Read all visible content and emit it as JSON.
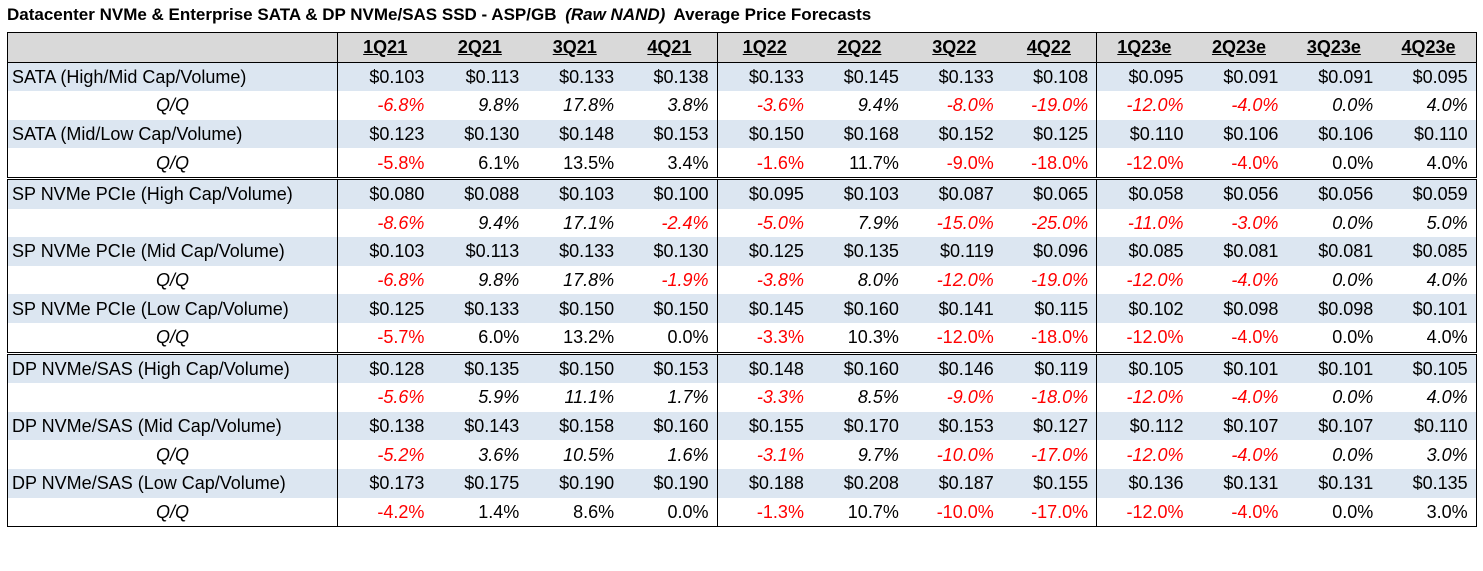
{
  "title": {
    "prefix": "Datacenter NVMe & Enterprise SATA & DP NVMe/SAS SSD - ASP/GB",
    "italic": "(Raw NAND)",
    "suffix": "Average Price Forecasts"
  },
  "chart_data": {
    "type": "table",
    "columns": [
      "1Q21",
      "2Q21",
      "3Q21",
      "4Q21",
      "1Q22",
      "2Q22",
      "3Q22",
      "4Q22",
      "1Q23e",
      "2Q23e",
      "3Q23e",
      "4Q23e"
    ],
    "rows": [
      {
        "label": "SATA (High/Mid Cap/Volume)",
        "kind": "price",
        "group_start": false,
        "values": [
          "$0.103",
          "$0.113",
          "$0.133",
          "$0.138",
          "$0.133",
          "$0.145",
          "$0.133",
          "$0.108",
          "$0.095",
          "$0.091",
          "$0.091",
          "$0.095"
        ]
      },
      {
        "label": "Q/Q",
        "kind": "qq",
        "italic": true,
        "values": [
          "-6.8%",
          "9.8%",
          "17.8%",
          "3.8%",
          "-3.6%",
          "9.4%",
          "-8.0%",
          "-19.0%",
          "-12.0%",
          "-4.0%",
          "0.0%",
          "4.0%"
        ]
      },
      {
        "label": "SATA (Mid/Low Cap/Volume)",
        "kind": "price",
        "values": [
          "$0.123",
          "$0.130",
          "$0.148",
          "$0.153",
          "$0.150",
          "$0.168",
          "$0.152",
          "$0.125",
          "$0.110",
          "$0.106",
          "$0.106",
          "$0.110"
        ]
      },
      {
        "label": "Q/Q",
        "kind": "qq",
        "italic": false,
        "values": [
          "-5.8%",
          "6.1%",
          "13.5%",
          "3.4%",
          "-1.6%",
          "11.7%",
          "-9.0%",
          "-18.0%",
          "-12.0%",
          "-4.0%",
          "0.0%",
          "4.0%"
        ]
      },
      {
        "label": "SP NVMe PCIe (High Cap/Volume)",
        "kind": "price",
        "group_start": true,
        "values": [
          "$0.080",
          "$0.088",
          "$0.103",
          "$0.100",
          "$0.095",
          "$0.103",
          "$0.087",
          "$0.065",
          "$0.058",
          "$0.056",
          "$0.056",
          "$0.059"
        ]
      },
      {
        "label": "",
        "kind": "qq",
        "italic": true,
        "values": [
          "-8.6%",
          "9.4%",
          "17.1%",
          "-2.4%",
          "-5.0%",
          "7.9%",
          "-15.0%",
          "-25.0%",
          "-11.0%",
          "-3.0%",
          "0.0%",
          "5.0%"
        ]
      },
      {
        "label": "SP NVMe PCIe (Mid Cap/Volume)",
        "kind": "price",
        "values": [
          "$0.103",
          "$0.113",
          "$0.133",
          "$0.130",
          "$0.125",
          "$0.135",
          "$0.119",
          "$0.096",
          "$0.085",
          "$0.081",
          "$0.081",
          "$0.085"
        ]
      },
      {
        "label": "Q/Q",
        "kind": "qq",
        "italic": true,
        "values": [
          "-6.8%",
          "9.8%",
          "17.8%",
          "-1.9%",
          "-3.8%",
          "8.0%",
          "-12.0%",
          "-19.0%",
          "-12.0%",
          "-4.0%",
          "0.0%",
          "4.0%"
        ]
      },
      {
        "label": "SP NVMe PCIe (Low Cap/Volume)",
        "kind": "price",
        "values": [
          "$0.125",
          "$0.133",
          "$0.150",
          "$0.150",
          "$0.145",
          "$0.160",
          "$0.141",
          "$0.115",
          "$0.102",
          "$0.098",
          "$0.098",
          "$0.101"
        ]
      },
      {
        "label": "Q/Q",
        "kind": "qq",
        "italic": false,
        "values": [
          "-5.7%",
          "6.0%",
          "13.2%",
          "0.0%",
          "-3.3%",
          "10.3%",
          "-12.0%",
          "-18.0%",
          "-12.0%",
          "-4.0%",
          "0.0%",
          "4.0%"
        ]
      },
      {
        "label": "DP NVMe/SAS (High Cap/Volume)",
        "kind": "price",
        "group_start": true,
        "values": [
          "$0.128",
          "$0.135",
          "$0.150",
          "$0.153",
          "$0.148",
          "$0.160",
          "$0.146",
          "$0.119",
          "$0.105",
          "$0.101",
          "$0.101",
          "$0.105"
        ]
      },
      {
        "label": "",
        "kind": "qq",
        "italic": true,
        "values": [
          "-5.6%",
          "5.9%",
          "11.1%",
          "1.7%",
          "-3.3%",
          "8.5%",
          "-9.0%",
          "-18.0%",
          "-12.0%",
          "-4.0%",
          "0.0%",
          "4.0%"
        ]
      },
      {
        "label": "DP NVMe/SAS (Mid Cap/Volume)",
        "kind": "price",
        "values": [
          "$0.138",
          "$0.143",
          "$0.158",
          "$0.160",
          "$0.155",
          "$0.170",
          "$0.153",
          "$0.127",
          "$0.112",
          "$0.107",
          "$0.107",
          "$0.110"
        ]
      },
      {
        "label": "Q/Q",
        "kind": "qq",
        "italic": true,
        "values": [
          "-5.2%",
          "3.6%",
          "10.5%",
          "1.6%",
          "-3.1%",
          "9.7%",
          "-10.0%",
          "-17.0%",
          "-12.0%",
          "-4.0%",
          "0.0%",
          "3.0%"
        ]
      },
      {
        "label": "DP NVMe/SAS (Low Cap/Volume)",
        "kind": "price",
        "values": [
          "$0.173",
          "$0.175",
          "$0.190",
          "$0.190",
          "$0.188",
          "$0.208",
          "$0.187",
          "$0.155",
          "$0.136",
          "$0.131",
          "$0.131",
          "$0.135"
        ]
      },
      {
        "label": "Q/Q",
        "kind": "qq",
        "italic": false,
        "values": [
          "-4.2%",
          "1.4%",
          "8.6%",
          "0.0%",
          "-1.3%",
          "10.7%",
          "-10.0%",
          "-17.0%",
          "-12.0%",
          "-4.0%",
          "0.0%",
          "3.0%"
        ]
      }
    ]
  },
  "colors": {
    "header_bg": "#d9d9d9",
    "price_row_bg": "#dce6f1",
    "negative_text": "#ff0000"
  }
}
